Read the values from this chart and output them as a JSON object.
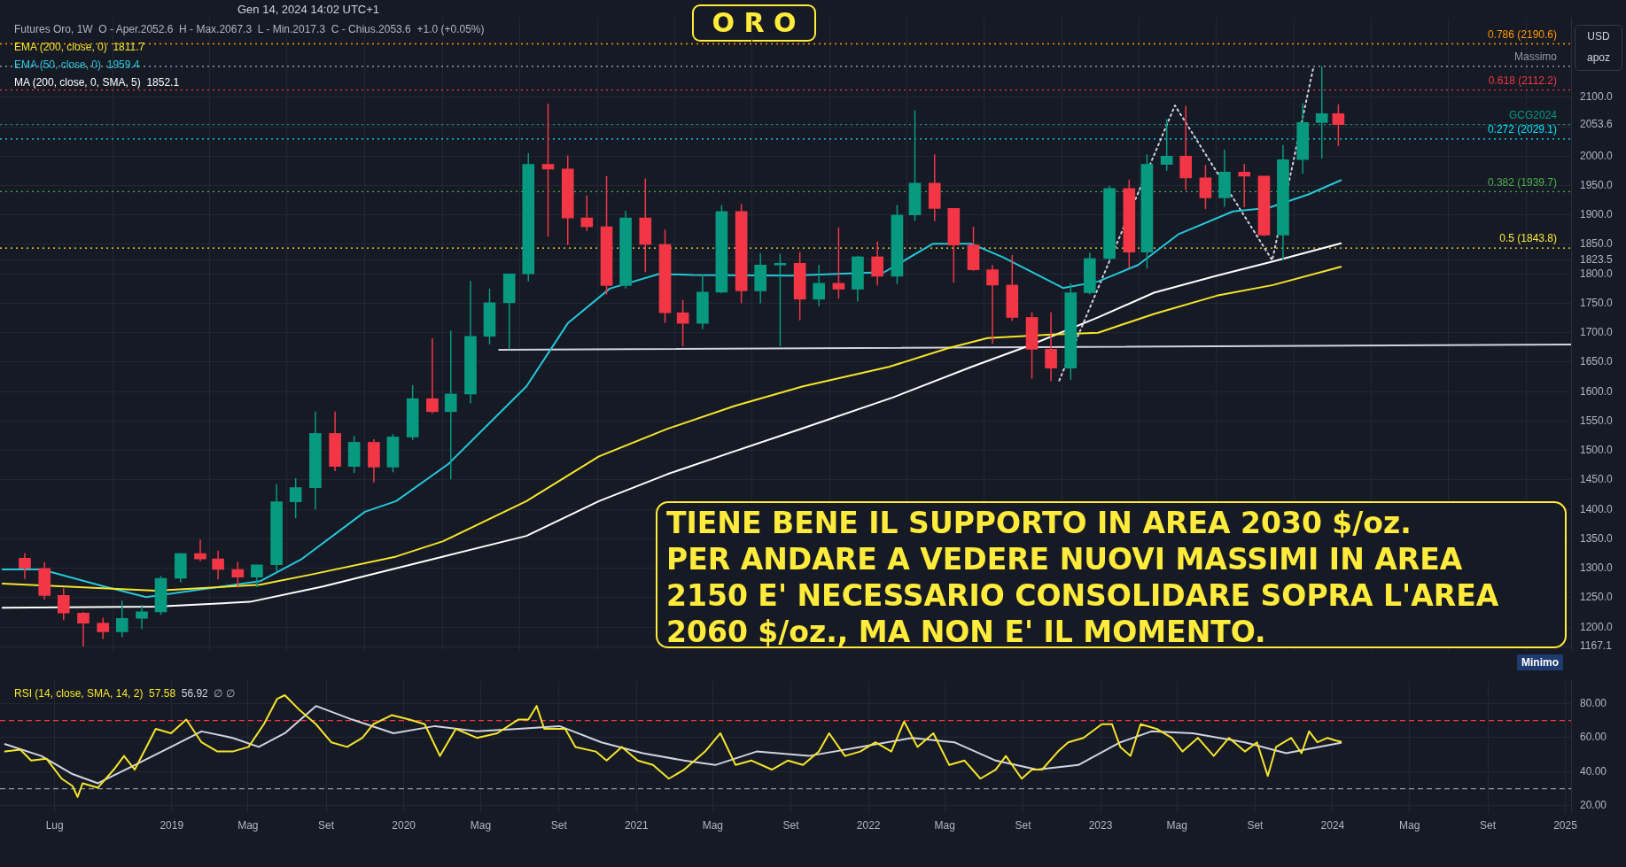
{
  "chart_data": [
    {
      "type": "candlestick",
      "title": "O R O",
      "subtitle": "Gen 14, 2024 14:02 UTC+1",
      "x": [
        "2018-05-15",
        "2018-06-15",
        "2018-07-15",
        "2018-08-15",
        "2018-09-15",
        "2018-10-15",
        "2018-11-15",
        "2018-12-15",
        "2019-01-15",
        "2019-02-15",
        "2019-03-15",
        "2019-04-15",
        "2019-05-15",
        "2019-06-15",
        "2019-07-15",
        "2019-08-15",
        "2019-09-15",
        "2019-10-15",
        "2019-11-15",
        "2019-12-15",
        "2020-01-15",
        "2020-02-15",
        "2020-03-15",
        "2020-04-15",
        "2020-05-15",
        "2020-06-15",
        "2020-07-15",
        "2020-08-15",
        "2020-09-15",
        "2020-10-15",
        "2020-11-15",
        "2020-12-15",
        "2021-01-15",
        "2021-02-15",
        "2021-03-15",
        "2021-04-15",
        "2021-05-15",
        "2021-06-15",
        "2021-07-15",
        "2021-08-15",
        "2021-09-15",
        "2021-10-15",
        "2021-11-15",
        "2021-12-15",
        "2022-01-15",
        "2022-02-15",
        "2022-03-15",
        "2022-04-15",
        "2022-05-15",
        "2022-06-15",
        "2022-07-15",
        "2022-08-15",
        "2022-09-15",
        "2022-10-15",
        "2022-11-15",
        "2022-12-15",
        "2023-01-15",
        "2023-02-15",
        "2023-03-15",
        "2023-04-15",
        "2023-05-15",
        "2023-06-15",
        "2023-07-15",
        "2023-08-15",
        "2023-09-15",
        "2023-10-15",
        "2023-11-15",
        "2023-12-15",
        "2024-01-10"
      ],
      "ohlc": [
        [
          1317,
          1326,
          1282,
          1300
        ],
        [
          1300,
          1310,
          1247,
          1254
        ],
        [
          1254,
          1266,
          1212,
          1224
        ],
        [
          1224,
          1226,
          1167.1,
          1207
        ],
        [
          1207,
          1216,
          1180,
          1192
        ],
        [
          1192,
          1245,
          1183,
          1215
        ],
        [
          1215,
          1238,
          1197,
          1226
        ],
        [
          1226,
          1287,
          1221,
          1283
        ],
        [
          1283,
          1326,
          1276,
          1325
        ],
        [
          1325,
          1349,
          1312,
          1316
        ],
        [
          1316,
          1330,
          1281,
          1298
        ],
        [
          1298,
          1311,
          1267,
          1285
        ],
        [
          1285,
          1306,
          1268,
          1306
        ],
        [
          1306,
          1443,
          1295,
          1413
        ],
        [
          1413,
          1453,
          1385,
          1437
        ],
        [
          1437,
          1566,
          1400,
          1529
        ],
        [
          1529,
          1566,
          1465,
          1473
        ],
        [
          1473,
          1525,
          1462,
          1514
        ],
        [
          1514,
          1519,
          1446,
          1472
        ],
        [
          1472,
          1528,
          1463,
          1523
        ],
        [
          1523,
          1611,
          1518,
          1588
        ],
        [
          1588,
          1691,
          1563,
          1566
        ],
        [
          1566,
          1704,
          1451,
          1596
        ],
        [
          1596,
          1788,
          1580,
          1694
        ],
        [
          1694,
          1775,
          1680,
          1751
        ],
        [
          1751,
          1800,
          1672,
          1800
        ],
        [
          1800,
          2005,
          1787,
          1986
        ],
        [
          1986,
          2089,
          1863,
          1978
        ],
        [
          1978,
          2001,
          1849,
          1895
        ],
        [
          1895,
          1933,
          1873,
          1880
        ],
        [
          1880,
          1966,
          1765,
          1780
        ],
        [
          1780,
          1907,
          1775,
          1895
        ],
        [
          1895,
          1962,
          1803,
          1850
        ],
        [
          1850,
          1875,
          1717,
          1734
        ],
        [
          1734,
          1756,
          1677,
          1716
        ],
        [
          1716,
          1799,
          1706,
          1769
        ],
        [
          1769,
          1917,
          1767,
          1906
        ],
        [
          1906,
          1919,
          1750,
          1771
        ],
        [
          1771,
          1835,
          1750,
          1815
        ],
        [
          1815,
          1834,
          1677,
          1818
        ],
        [
          1818,
          1837,
          1721,
          1757
        ],
        [
          1757,
          1815,
          1745,
          1784
        ],
        [
          1784,
          1879,
          1758,
          1774
        ],
        [
          1774,
          1831,
          1753,
          1829
        ],
        [
          1829,
          1855,
          1780,
          1796
        ],
        [
          1796,
          1917,
          1783,
          1900
        ],
        [
          1900,
          2078,
          1890,
          1954
        ],
        [
          1954,
          2003,
          1890,
          1911
        ],
        [
          1911,
          1912,
          1785,
          1849
        ],
        [
          1849,
          1880,
          1805,
          1807
        ],
        [
          1807,
          1815,
          1681,
          1781
        ],
        [
          1781,
          1832,
          1720,
          1726
        ],
        [
          1726,
          1735,
          1622,
          1672
        ],
        [
          1672,
          1735,
          1618,
          1640
        ],
        [
          1640,
          1784,
          1620,
          1768
        ],
        [
          1768,
          1836,
          1765,
          1826
        ],
        [
          1826,
          1950,
          1823,
          1945
        ],
        [
          1945,
          1960,
          1810,
          1837
        ],
        [
          1837,
          2003,
          1809,
          1986
        ],
        [
          1986,
          2063,
          1975,
          2000
        ],
        [
          2000,
          2085,
          1942,
          1963
        ],
        [
          1963,
          1985,
          1910,
          1929
        ],
        [
          1929,
          2011,
          1914,
          1973
        ],
        [
          1973,
          1987,
          1913,
          1966
        ],
        [
          1966,
          1966,
          1864,
          1866
        ],
        [
          1866,
          2019,
          1823,
          1994
        ],
        [
          1994,
          2090,
          1970,
          2057
        ],
        [
          2057,
          2152.3,
          1996,
          2072
        ],
        [
          2072,
          2088,
          2017,
          2053.6
        ]
      ],
      "series": [
        {
          "type": "line",
          "name": "EMA (200, close, 0)  1811.7",
          "color": "#f5e52c",
          "x": [
            "2018-04-10",
            "2018-12-07",
            "2019-05-20",
            "2019-08-11",
            "2019-12-20",
            "2020-03-03",
            "2020-07-12",
            "2020-11-03",
            "2021-02-19",
            "2021-06-05",
            "2021-09-20",
            "2022-02-02",
            "2022-05-07",
            "2022-07-07",
            "2022-10-16",
            "2022-12-28",
            "2023-03-26",
            "2023-07-03",
            "2023-09-29",
            "2024-01-14"
          ],
          "values": [
            1274,
            1262,
            1272,
            1290,
            1320,
            1346,
            1414,
            1490,
            1537,
            1576,
            1609,
            1642,
            1674,
            1691,
            1697,
            1700,
            1732,
            1763,
            1781,
            1812
          ]
        },
        {
          "type": "line",
          "name": "EMA (50, close, 0)  1959.4",
          "color": "#26c6da",
          "x": [
            "2018-04-10",
            "2018-06-10",
            "2018-09-17",
            "2018-11-22",
            "2019-05-20",
            "2019-07-25",
            "2019-11-01",
            "2019-12-20",
            "2020-03-11",
            "2020-07-12",
            "2020-09-15",
            "2020-11-20",
            "2021-02-06",
            "2021-03-31",
            "2021-08-31",
            "2022-01-26",
            "2022-04-12",
            "2022-06-12",
            "2022-08-01",
            "2022-11-03",
            "2022-12-28",
            "2023-03-01",
            "2023-05-03",
            "2023-07-28",
            "2023-09-22",
            "2023-11-24",
            "2024-01-14"
          ],
          "values": [
            1298,
            1298,
            1269,
            1251,
            1278,
            1316,
            1396,
            1414,
            1477,
            1609,
            1716,
            1775,
            1800,
            1798,
            1797,
            1803,
            1851,
            1851,
            1828,
            1776,
            1787,
            1815,
            1867,
            1906,
            1912,
            1935,
            1959
          ]
        },
        {
          "type": "line",
          "name": "MA (200, close, 0, SMA, 5)  1852.1",
          "color": "#ffffff",
          "x": [
            "2018-04-10",
            "2018-12-07",
            "2019-05-04",
            "2019-08-27",
            "2020-03-03",
            "2020-07-12",
            "2020-11-03",
            "2021-02-19",
            "2021-06-05",
            "2021-09-20",
            "2022-02-08",
            "2022-06-12",
            "2022-09-08",
            "2022-12-28",
            "2023-03-26",
            "2023-07-03",
            "2023-09-29",
            "2024-01-14"
          ],
          "values": [
            1233,
            1235,
            1243,
            1269,
            1320,
            1355,
            1414,
            1460,
            1499,
            1538,
            1590,
            1642,
            1677,
            1726,
            1768,
            1797,
            1821,
            1852
          ]
        },
        {
          "type": "line",
          "color": "#d1d4dc",
          "line_style": "dotted",
          "x": [
            "2022-10-28",
            "2023-04-28",
            "2023-09-28",
            "2023-12-02"
          ],
          "values": [
            1619,
            2086,
            1823,
            2152
          ]
        },
        {
          "type": "line",
          "color": "#d1d4dc",
          "x": [
            "2020-05-30",
            "2025-01-10"
          ],
          "values": [
            1671,
            1680
          ]
        }
      ],
      "xlim": [
        "2018-04-06",
        "2025-01-10"
      ],
      "xticks": [
        {
          "value": "2018-07",
          "label": null
        },
        {
          "value": "2019-01",
          "label": null
        },
        {
          "value": "2019-05",
          "label": null
        },
        {
          "value": "2019-09",
          "label": null
        },
        {
          "value": "2020-01",
          "label": null
        },
        {
          "value": "2020-05",
          "label": null
        },
        {
          "value": "2020-09",
          "label": null
        },
        {
          "value": "2021-01",
          "label": null
        },
        {
          "value": "2021-05",
          "label": null
        },
        {
          "value": "2021-09",
          "label": null
        },
        {
          "value": "2022-01",
          "label": null
        },
        {
          "value": "2022-05",
          "label": null
        },
        {
          "value": "2022-09",
          "label": null
        },
        {
          "value": "2023-01",
          "label": null
        },
        {
          "value": "2023-05",
          "label": null
        },
        {
          "value": "2023-09",
          "label": null
        },
        {
          "value": "2024-01",
          "label": null
        },
        {
          "value": "2024-05",
          "label": null
        },
        {
          "value": "2024-09",
          "label": null
        },
        {
          "value": "2025-01",
          "label": null
        }
      ],
      "ylim": [
        1160,
        2235
      ],
      "yticks": [
        {
          "value": 1167.1,
          "label": "1167.1"
        },
        {
          "value": 1200,
          "label": "1200.0"
        },
        {
          "value": 1250,
          "label": "1250.0"
        },
        {
          "value": 1300,
          "label": "1300.0"
        },
        {
          "value": 1350,
          "label": "1350.0"
        },
        {
          "value": 1400,
          "label": "1400.0"
        },
        {
          "value": 1450,
          "label": "1450.0"
        },
        {
          "value": 1500,
          "label": "1500.0"
        },
        {
          "value": 1550,
          "label": "1550.0"
        },
        {
          "value": 1600,
          "label": "1600.0"
        },
        {
          "value": 1650,
          "label": "1650.0"
        },
        {
          "value": 1700,
          "label": "1700.0"
        },
        {
          "value": 1750,
          "label": "1750.0"
        },
        {
          "value": 1800,
          "label": "1800.0"
        },
        {
          "value": 1823.5,
          "label": "1823.5"
        },
        {
          "value": 1850,
          "label": "1850.0"
        },
        {
          "value": 1900,
          "label": "1900.0"
        },
        {
          "value": 1950,
          "label": "1950.0"
        },
        {
          "value": 2000,
          "label": "2000.0"
        },
        {
          "value": 2050,
          "label": null
        },
        {
          "value": 2053.6,
          "label": "2053.6"
        },
        {
          "value": 2100,
          "label": "2100.0"
        }
      ],
      "tick_labels": "y",
      "grid": true,
      "legend": "top left",
      "ref_lines": [
        {
          "axis": "y",
          "value": 2190.6,
          "label": "0.786 (2190.6)",
          "color": "#ff9800",
          "line_style": "dotted"
        },
        {
          "axis": "y",
          "value": 2152.3,
          "label": "Massimo",
          "color": "#9598a1",
          "line_style": "dotted"
        },
        {
          "axis": "y",
          "value": 2112.2,
          "label": "0.618 (2112.2)",
          "color": "#f23645",
          "line_style": "dotted"
        },
        {
          "axis": "y",
          "value": 2053.6,
          "label": "GCG2024",
          "color": "#089981",
          "line_style": "dotted"
        },
        {
          "axis": "y",
          "value": 2029.1,
          "label": "0.272 (2029.1)",
          "color": "#00e5ff",
          "line_style": "dotted"
        },
        {
          "axis": "y",
          "value": 1939.7,
          "label": "0.382 (1939.7)",
          "color": "#4caf50",
          "line_style": "dotted"
        },
        {
          "axis": "y",
          "value": 1843.8,
          "label": "0.5 (1843.8)",
          "color": "#ffeb3b",
          "line_style": "dotted"
        }
      ],
      "annotations": [
        "Futures Oro, 1W  O - Aper.2052.6  H - Max.2067.3  L - Min.2017.3  C - Chius.2053.6  +1.0 (+0.05%)",
        "TIENE BENE IL SUPPORTO IN AREA 2030 $/oz.\nPER ANDARE A VEDERE NUOVI MASSIMI IN AREA\n2150 E' NECESSARIO CONSOLIDARE SOPRA L'AREA\n2060 $/oz., MA NON E' IL MOMENTO.",
        "USD",
        "apoz",
        "Minimo"
      ]
    },
    {
      "type": "line",
      "legend": "top left",
      "grid": true,
      "series": [
        {
          "name": "RSI (14, close, SMA, 14, 2)  57.58",
          "color": "#f5e52c",
          "x": [
            "2018-04-14",
            "2018-05-08",
            "2018-05-25",
            "2018-06-18",
            "2018-07-12",
            "2018-07-29",
            "2018-08-06",
            "2018-08-14",
            "2018-09-07",
            "2018-10-02",
            "2018-10-18",
            "2018-11-04",
            "2018-12-07",
            "2018-12-31",
            "2019-01-24",
            "2019-02-17",
            "2019-03-14",
            "2019-04-07",
            "2019-05-02",
            "2019-05-26",
            "2019-06-16",
            "2019-06-28",
            "2019-07-22",
            "2019-08-16",
            "2019-09-09",
            "2019-10-04",
            "2019-10-28",
            "2019-11-14",
            "2019-12-13",
            "2020-01-10",
            "2020-02-03",
            "2020-02-27",
            "2020-03-23",
            "2020-04-25",
            "2020-05-27",
            "2020-06-29",
            "2020-07-15",
            "2020-07-28",
            "2020-08-09",
            "2020-09-11",
            "2020-09-27",
            "2020-10-29",
            "2020-11-15",
            "2020-12-09",
            "2021-01-03",
            "2021-01-27",
            "2021-02-21",
            "2021-03-17",
            "2021-04-19",
            "2021-05-13",
            "2021-06-06",
            "2021-07-01",
            "2021-08-02",
            "2021-08-27",
            "2021-09-20",
            "2021-10-15",
            "2021-10-31",
            "2021-11-25",
            "2021-12-19",
            "2022-01-12",
            "2022-02-06",
            "2022-02-26",
            "2022-03-19",
            "2022-04-13",
            "2022-05-08",
            "2022-06-01",
            "2022-06-26",
            "2022-07-20",
            "2022-08-05",
            "2022-08-30",
            "2022-09-15",
            "2022-10-01",
            "2022-10-26",
            "2022-11-11",
            "2022-12-05",
            "2023-01-03",
            "2023-01-19",
            "2023-02-01",
            "2023-02-17",
            "2023-03-05",
            "2023-03-30",
            "2023-04-23",
            "2023-05-10",
            "2023-06-03",
            "2023-06-28",
            "2023-07-22",
            "2023-08-16",
            "2023-09-04",
            "2023-09-21",
            "2023-10-04",
            "2023-10-28",
            "2023-11-13",
            "2023-11-25",
            "2023-12-08",
            "2023-12-24",
            "2024-01-06",
            "2024-01-14"
          ],
          "values": [
            51.8,
            52.9,
            46.5,
            47.6,
            35.9,
            31.6,
            25.2,
            33.2,
            30.6,
            41.2,
            49.2,
            41.2,
            65.1,
            62.5,
            70.5,
            57.2,
            51.8,
            51.8,
            54.5,
            67.8,
            82.7,
            84.8,
            75.8,
            67.8,
            57.2,
            54.5,
            59.8,
            67.8,
            73.1,
            70.5,
            67.8,
            49.2,
            65.1,
            59.8,
            62.5,
            70.5,
            70.5,
            78.5,
            65.1,
            65.1,
            54.5,
            51.8,
            46.5,
            54.5,
            46.5,
            43.9,
            35.9,
            41.2,
            51.8,
            62.5,
            43.9,
            46.5,
            41.2,
            46.5,
            43.9,
            51.8,
            62.5,
            49.2,
            51.8,
            57.2,
            51.8,
            69.4,
            54.5,
            62.5,
            43.9,
            46.5,
            35.9,
            41.2,
            49.2,
            35.9,
            41.2,
            41.2,
            51.8,
            57.2,
            59.8,
            67.8,
            67.8,
            54.5,
            49.2,
            67.8,
            65.1,
            59.8,
            51.8,
            59.8,
            49.2,
            59.8,
            51.8,
            57.2,
            37.5,
            54.5,
            59.8,
            50.8,
            63.6,
            57.2,
            59.8,
            58.2,
            57.6
          ]
        },
        {
          "name": "56.92",
          "color": "#d1d4dc",
          "x": [
            "2018-04-14",
            "2018-06-10",
            "2018-07-29",
            "2018-09-07",
            "2018-11-04",
            "2018-12-31",
            "2019-02-17",
            "2019-04-07",
            "2019-05-18",
            "2019-06-28",
            "2019-08-16",
            "2019-10-12",
            "2019-12-16",
            "2020-02-19",
            "2020-04-25",
            "2020-06-29",
            "2020-09-02",
            "2020-11-07",
            "2021-01-11",
            "2021-03-17",
            "2021-05-05",
            "2021-07-09",
            "2021-09-29",
            "2021-12-19",
            "2022-03-11",
            "2022-05-16",
            "2022-07-20",
            "2022-09-23",
            "2022-11-27",
            "2023-02-01",
            "2023-03-22",
            "2023-05-26",
            "2023-08-16",
            "2023-10-20",
            "2024-01-14"
          ],
          "values": [
            56.1,
            49.2,
            38.6,
            33.2,
            43.9,
            54.5,
            63.6,
            59.8,
            54.5,
            62.5,
            78.5,
            70.5,
            62.5,
            66.7,
            63.6,
            65.1,
            66.7,
            57.2,
            50.8,
            46.5,
            43.9,
            51.8,
            49.2,
            54.5,
            59.8,
            57.2,
            46.5,
            41.2,
            43.9,
            57.2,
            63.6,
            62.5,
            57.2,
            50.8,
            56.9
          ]
        }
      ],
      "xlim": [
        "2018-04-06",
        "2025-01-10"
      ],
      "xticks": [
        {
          "value": "2018-07",
          "label": "Lug"
        },
        {
          "value": "2019-01",
          "label": "2019"
        },
        {
          "value": "2019-05",
          "label": "Mag"
        },
        {
          "value": "2019-09",
          "label": "Set"
        },
        {
          "value": "2020-01",
          "label": "2020"
        },
        {
          "value": "2020-05",
          "label": "Mag"
        },
        {
          "value": "2020-09",
          "label": "Set"
        },
        {
          "value": "2021-01",
          "label": "2021"
        },
        {
          "value": "2021-05",
          "label": "Mag"
        },
        {
          "value": "2021-09",
          "label": "Set"
        },
        {
          "value": "2022-01",
          "label": "2022"
        },
        {
          "value": "2022-05",
          "label": "Mag"
        },
        {
          "value": "2022-09",
          "label": "Set"
        },
        {
          "value": "2023-01",
          "label": "2023"
        },
        {
          "value": "2023-05",
          "label": "Mag"
        },
        {
          "value": "2023-09",
          "label": "Set"
        },
        {
          "value": "2024-01",
          "label": "2024"
        },
        {
          "value": "2024-05",
          "label": "Mag"
        },
        {
          "value": "2024-09",
          "label": "Set"
        },
        {
          "value": "2025-01",
          "label": "2025"
        }
      ],
      "ylim": [
        16,
        93
      ],
      "yticks": [
        {
          "value": 20,
          "label": "20.00"
        },
        {
          "value": 40,
          "label": "40.00"
        },
        {
          "value": 60,
          "label": "60.00"
        },
        {
          "value": 80,
          "label": "80.00"
        }
      ],
      "ref_lines": [
        {
          "axis": "y",
          "value": 70,
          "color": "#f23645",
          "line_style": "dashed"
        },
        {
          "axis": "y",
          "value": 30,
          "color": "#9598a1",
          "line_style": "dashed"
        }
      ],
      "annotations": [
        "∅ ∅"
      ]
    }
  ]
}
